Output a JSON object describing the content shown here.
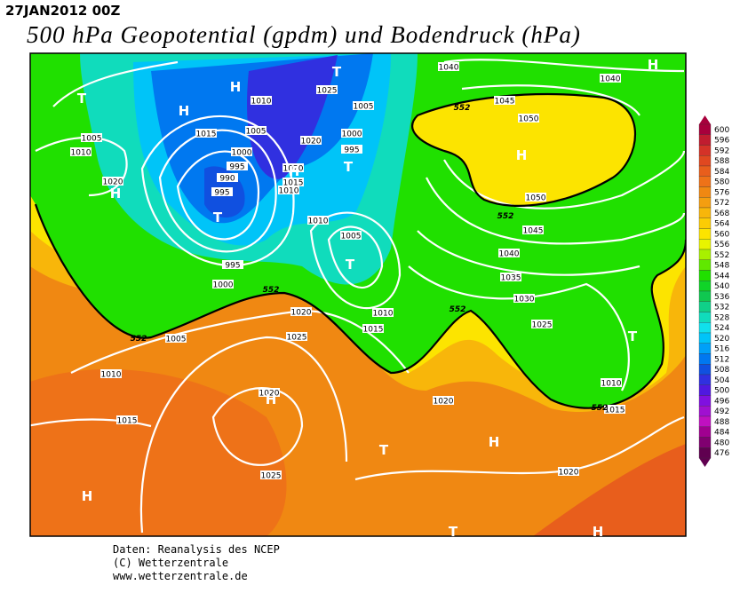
{
  "header": {
    "date": "27JAN2012 00Z",
    "title": "500 hPa Geopotential (gpdm) und Bodendruck (hPa)"
  },
  "map": {
    "isobar_labels": [
      "1040",
      "1040",
      "1045",
      "1050",
      "1050",
      "1045",
      "1040",
      "1035",
      "1030",
      "1025",
      "1010",
      "1015",
      "1020",
      "1020",
      "1025",
      "1020",
      "1025",
      "1020",
      "1015",
      "1010",
      "1005",
      "1000",
      "995",
      "1005",
      "1010",
      "1010",
      "1015",
      "995",
      "990",
      "995",
      "1000",
      "1005",
      "1015",
      "1010",
      "1025",
      "1005",
      "1000",
      "995",
      "1020",
      "1020",
      "1015",
      "1010",
      "1005",
      "1010",
      "1020"
    ],
    "pressure_centers": [
      "T",
      "H",
      "H",
      "T",
      "H",
      "T",
      "T",
      "T",
      "H",
      "H",
      "H",
      "T",
      "H",
      "T",
      "H",
      "H",
      "T",
      "H"
    ],
    "contour_552_labels": [
      "552",
      "552",
      "552",
      "552",
      "552",
      "552"
    ]
  },
  "colorbar": {
    "levels": [
      {
        "value": 600,
        "color": "#a8003c"
      },
      {
        "value": 596,
        "color": "#c01c30"
      },
      {
        "value": 592,
        "color": "#d43228"
      },
      {
        "value": 588,
        "color": "#e04820"
      },
      {
        "value": 584,
        "color": "#e85e1c"
      },
      {
        "value": 580,
        "color": "#ee7218"
      },
      {
        "value": 576,
        "color": "#f08812"
      },
      {
        "value": 572,
        "color": "#f49e10"
      },
      {
        "value": 568,
        "color": "#f8b60a"
      },
      {
        "value": 564,
        "color": "#fccc04"
      },
      {
        "value": 560,
        "color": "#fce400"
      },
      {
        "value": 556,
        "color": "#e8f400"
      },
      {
        "value": 552,
        "color": "#a8f000"
      },
      {
        "value": 548,
        "color": "#60e800"
      },
      {
        "value": 544,
        "color": "#20e000"
      },
      {
        "value": 540,
        "color": "#10d428"
      },
      {
        "value": 536,
        "color": "#10c850"
      },
      {
        "value": 532,
        "color": "#10d088"
      },
      {
        "value": 528,
        "color": "#10dcbc"
      },
      {
        "value": 524,
        "color": "#10e0ec"
      },
      {
        "value": 520,
        "color": "#00c4f8"
      },
      {
        "value": 516,
        "color": "#00a0f8"
      },
      {
        "value": 512,
        "color": "#0078f0"
      },
      {
        "value": 508,
        "color": "#1050e0"
      },
      {
        "value": 504,
        "color": "#3030e0"
      },
      {
        "value": 500,
        "color": "#5018e0"
      },
      {
        "value": 496,
        "color": "#8010e0"
      },
      {
        "value": 492,
        "color": "#a010d0"
      },
      {
        "value": 488,
        "color": "#c010c0"
      },
      {
        "value": 484,
        "color": "#a00090"
      },
      {
        "value": 480,
        "color": "#800070"
      },
      {
        "value": 476,
        "color": "#600050"
      }
    ]
  },
  "footer": {
    "lines": [
      "Daten: Reanalysis des NCEP",
      "(C) Wetterzentrale",
      "www.wetterzentrale.de"
    ]
  }
}
